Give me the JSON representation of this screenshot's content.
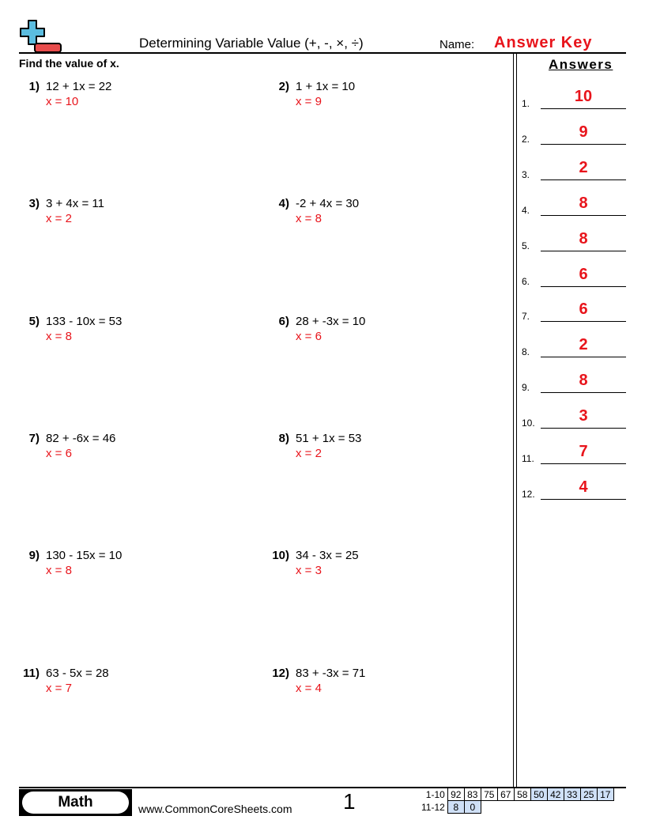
{
  "header": {
    "title": "Determining Variable Value (+, -, ×, ÷)",
    "name_label": "Name:",
    "name_value": "Answer Key"
  },
  "instructions": "Find the value of x.",
  "answers_heading": "Answers",
  "problems": [
    {
      "num": "1)",
      "eq": "12 + 1x = 22",
      "ans": "x = 10"
    },
    {
      "num": "2)",
      "eq": "1 + 1x = 10",
      "ans": "x = 9"
    },
    {
      "num": "3)",
      "eq": "3 + 4x = 11",
      "ans": "x = 2"
    },
    {
      "num": "4)",
      "eq": "-2 + 4x = 30",
      "ans": "x = 8"
    },
    {
      "num": "5)",
      "eq": "133 - 10x = 53",
      "ans": "x = 8"
    },
    {
      "num": "6)",
      "eq": "28 + -3x = 10",
      "ans": "x = 6"
    },
    {
      "num": "7)",
      "eq": "82 + -6x = 46",
      "ans": "x = 6"
    },
    {
      "num": "8)",
      "eq": "51 + 1x = 53",
      "ans": "x = 2"
    },
    {
      "num": "9)",
      "eq": "130 - 15x = 10",
      "ans": "x = 8"
    },
    {
      "num": "10)",
      "eq": "34 - 3x = 25",
      "ans": "x = 3"
    },
    {
      "num": "11)",
      "eq": "63 - 5x = 28",
      "ans": "x = 7"
    },
    {
      "num": "12)",
      "eq": "83 + -3x = 71",
      "ans": "x = 4"
    }
  ],
  "answer_key": [
    {
      "n": "1.",
      "v": "10"
    },
    {
      "n": "2.",
      "v": "9"
    },
    {
      "n": "3.",
      "v": "2"
    },
    {
      "n": "4.",
      "v": "8"
    },
    {
      "n": "5.",
      "v": "8"
    },
    {
      "n": "6.",
      "v": "6"
    },
    {
      "n": "7.",
      "v": "6"
    },
    {
      "n": "8.",
      "v": "2"
    },
    {
      "n": "9.",
      "v": "8"
    },
    {
      "n": "10.",
      "v": "3"
    },
    {
      "n": "11.",
      "v": "7"
    },
    {
      "n": "12.",
      "v": "4"
    }
  ],
  "footer": {
    "subject": "Math",
    "website": "www.CommonCoreSheets.com",
    "page": "1",
    "score_rows": [
      {
        "label": "1-10",
        "cells": [
          "92",
          "83",
          "75",
          "67",
          "58",
          "50",
          "42",
          "33",
          "25",
          "17"
        ]
      },
      {
        "label": "11-12",
        "cells": [
          "8",
          "0"
        ]
      }
    ]
  },
  "colors": {
    "answer": "#e8141b",
    "logo_plus": "#5bbde0",
    "logo_minus": "#e84c4c",
    "score_highlight": "#cfe0f7"
  }
}
